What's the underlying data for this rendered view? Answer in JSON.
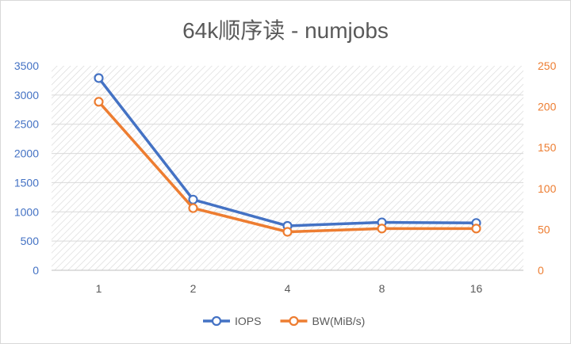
{
  "chart_data": {
    "type": "line",
    "title": "64k顺序读 - numjobs",
    "categories": [
      "1",
      "2",
      "4",
      "8",
      "16"
    ],
    "series": [
      {
        "name": "IOPS",
        "axis": "left",
        "color": "#4472c4",
        "values": [
          3290,
          1210,
          760,
          820,
          810
        ]
      },
      {
        "name": "BW(MiB/s)",
        "axis": "right",
        "color": "#ed7d31",
        "values": [
          206,
          76,
          47,
          51,
          51
        ]
      }
    ],
    "y_left": {
      "min": 0,
      "max": 3500,
      "ticks": [
        "0",
        "500",
        "1000",
        "1500",
        "2000",
        "2500",
        "3000",
        "3500"
      ],
      "color": "#4472c4"
    },
    "y_right": {
      "min": 0,
      "max": 250,
      "ticks": [
        "0",
        "50",
        "100",
        "150",
        "200",
        "250"
      ],
      "color": "#ed7d31"
    },
    "plot_background": "hatched",
    "legend_position": "bottom"
  }
}
